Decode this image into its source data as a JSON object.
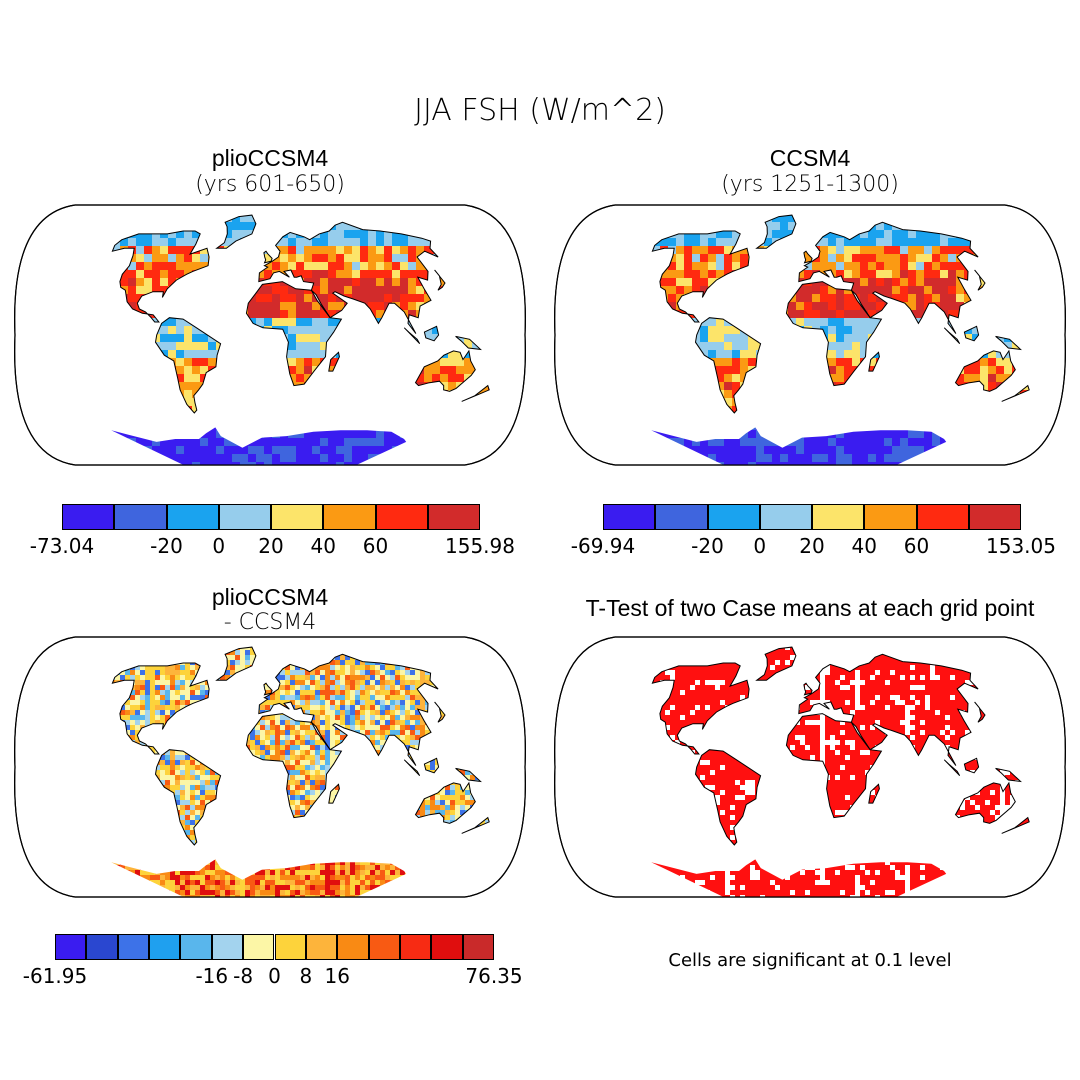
{
  "title": "JJA FSH (W/m^2)",
  "panels": [
    {
      "title": "plioCCSM4",
      "subtitle": "(yrs 601-650)"
    },
    {
      "title": "CCSM4",
      "subtitle": "(yrs 1251-1300)"
    },
    {
      "title": "plioCCSM4",
      "subtitle": "- CCSM4"
    },
    {
      "title": "T-Test of two Case means at each grid point",
      "subtitle": ""
    }
  ],
  "colorbars": [
    {
      "colors": [
        "#3a1cf0",
        "#3f65de",
        "#1aa3ef",
        "#96cdec",
        "#fce46a",
        "#fb9a13",
        "#ff2a10",
        "#d22b2b"
      ],
      "labels": [
        "-73.04",
        "-20",
        "0",
        "20",
        "40",
        "60",
        "155.98"
      ]
    },
    {
      "colors": [
        "#3a1cf0",
        "#3f65de",
        "#1aa3ef",
        "#96cdec",
        "#fce46a",
        "#fb9a13",
        "#ff2a10",
        "#d22b2b"
      ],
      "labels": [
        "-69.94",
        "-20",
        "0",
        "20",
        "40",
        "60",
        "153.05"
      ]
    },
    {
      "colors": [
        "#3a1cf0",
        "#2a47d0",
        "#3d72e8",
        "#1fa0ef",
        "#59b6ec",
        "#a3d3ee",
        "#fcf6a6",
        "#fdd33b",
        "#fdb43b",
        "#f98a14",
        "#f85a13",
        "#f72b13",
        "#e00e0e",
        "#c92a2a"
      ],
      "labels": [
        "-61.95",
        "-16",
        "-8",
        "0",
        "8",
        "16",
        "76.35"
      ]
    }
  ],
  "note": "Cells are significant at 0.1 level"
}
